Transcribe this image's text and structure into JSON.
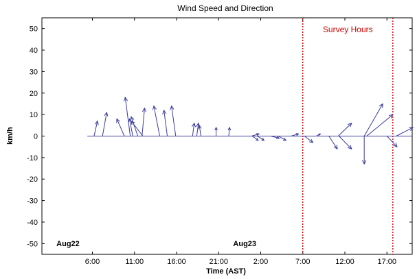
{
  "chart_data": {
    "type": "vector",
    "title": "Wind Speed and Direction",
    "xlabel": "Time (AST)",
    "ylabel": "km/h",
    "xlim": [
      0,
      44
    ],
    "ylim": [
      -55,
      55
    ],
    "x_tick_labels": [
      "6:00",
      "11:00",
      "16:00",
      "21:00",
      "2:00",
      "7:00",
      "12:00",
      "17:00"
    ],
    "x_tick_positions": [
      6,
      11,
      16,
      21,
      26,
      31,
      36,
      41
    ],
    "y_ticks": [
      -50,
      -40,
      -30,
      -20,
      -10,
      0,
      10,
      20,
      30,
      40,
      50
    ],
    "day_labels": [
      {
        "text": "Aug22",
        "x": 3.1
      },
      {
        "text": "Aug23",
        "x": 24.1
      }
    ],
    "survey": {
      "label": "Survey Hours",
      "start": 31,
      "end": 41.7,
      "color": "#d00000"
    },
    "baseline": {
      "from": 5.4,
      "to": 44
    },
    "series_color": "#3a3aa0",
    "vectors": [
      {
        "x": 6.2,
        "u": 0.4,
        "v": 7
      },
      {
        "x": 7.2,
        "u": 0.5,
        "v": 11
      },
      {
        "x": 9.8,
        "u": -0.9,
        "v": 8
      },
      {
        "x": 10.5,
        "u": -0.6,
        "v": 18
      },
      {
        "x": 10.8,
        "u": -0.4,
        "v": 8
      },
      {
        "x": 11.4,
        "u": -0.8,
        "v": 9
      },
      {
        "x": 11.9,
        "u": 0.3,
        "v": 13
      },
      {
        "x": 12.0,
        "u": -1.4,
        "v": 7
      },
      {
        "x": 14.0,
        "u": -0.7,
        "v": 14
      },
      {
        "x": 14.9,
        "u": -0.4,
        "v": 12
      },
      {
        "x": 15.9,
        "u": -0.5,
        "v": 14
      },
      {
        "x": 17.9,
        "u": 0.2,
        "v": 6
      },
      {
        "x": 18.4,
        "u": 0.2,
        "v": 6
      },
      {
        "x": 18.9,
        "u": -0.2,
        "v": 5
      },
      {
        "x": 20.7,
        "u": 0.0,
        "v": 4
      },
      {
        "x": 22.2,
        "u": 0.1,
        "v": 4
      },
      {
        "x": 24.9,
        "u": 0.9,
        "v": 1
      },
      {
        "x": 25.0,
        "u": 0.7,
        "v": -2
      },
      {
        "x": 25.6,
        "u": 0.8,
        "v": -2
      },
      {
        "x": 27.2,
        "u": 1.0,
        "v": -1
      },
      {
        "x": 28.1,
        "u": 0.9,
        "v": -2
      },
      {
        "x": 29.6,
        "u": 0.9,
        "v": 1
      },
      {
        "x": 31.2,
        "u": 1.0,
        "v": -3
      },
      {
        "x": 32.6,
        "u": 0.5,
        "v": 1
      },
      {
        "x": 34.1,
        "u": 1.0,
        "v": -6
      },
      {
        "x": 35.2,
        "u": 1.6,
        "v": 6
      },
      {
        "x": 35.3,
        "u": 1.5,
        "v": -6
      },
      {
        "x": 38.3,
        "u": 2.2,
        "v": 15
      },
      {
        "x": 38.3,
        "u": 0.0,
        "v": -13
      },
      {
        "x": 38.6,
        "u": 3.1,
        "v": 10
      },
      {
        "x": 41.0,
        "u": 1.2,
        "v": -5
      },
      {
        "x": 42.1,
        "u": 2.0,
        "v": 4
      }
    ]
  }
}
